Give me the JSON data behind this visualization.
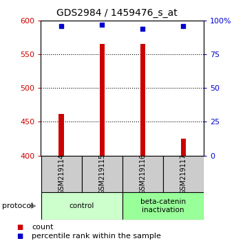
{
  "title": "GDS2984 / 1459476_s_at",
  "samples": [
    "GSM219114",
    "GSM219115",
    "GSM219116",
    "GSM219117"
  ],
  "bar_values": [
    462,
    565,
    565,
    425
  ],
  "percentile_values": [
    96,
    97,
    94,
    96
  ],
  "bar_color": "#cc0000",
  "dot_color": "#0000cc",
  "ylim_left": [
    400,
    600
  ],
  "ylim_right": [
    0,
    100
  ],
  "yticks_left": [
    400,
    450,
    500,
    550,
    600
  ],
  "yticks_right": [
    0,
    25,
    50,
    75,
    100
  ],
  "ytick_labels_right": [
    "0",
    "25",
    "50",
    "75",
    "100%"
  ],
  "groups": [
    {
      "label": "control",
      "indices": [
        0,
        1
      ],
      "color": "#ccffcc"
    },
    {
      "label": "beta-catenin\ninactivation",
      "indices": [
        2,
        3
      ],
      "color": "#99ff99"
    }
  ],
  "protocol_label": "protocol",
  "legend_count_label": "count",
  "legend_percentile_label": "percentile rank within the sample",
  "background_color": "#ffffff",
  "tick_label_color_left": "#cc0000",
  "tick_label_color_right": "#0000cc",
  "bar_width": 0.12,
  "sample_box_color": "#cccccc",
  "grid_dotted_ticks": [
    450,
    500,
    550
  ]
}
